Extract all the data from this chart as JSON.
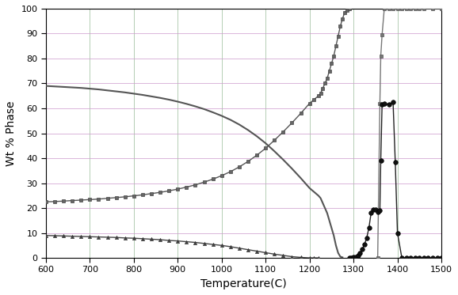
{
  "title": "",
  "xlabel": "Temperature(C)",
  "ylabel": "Wt % Phase",
  "xlim": [
    600,
    1500
  ],
  "ylim": [
    0,
    100
  ],
  "xticks": [
    600,
    700,
    800,
    900,
    1000,
    1100,
    1200,
    1300,
    1400,
    1500
  ],
  "yticks": [
    0,
    10,
    20,
    30,
    40,
    50,
    60,
    70,
    80,
    90,
    100
  ],
  "bg_color": "#ffffff",
  "grid_color": "#cc99cc",
  "grid_color2": "#99cc99",
  "series1_color": "#555555",
  "series2_color": "#777777",
  "series3_color": "#333333",
  "series4_color": "#000000",
  "gamma_prime_temps": [
    600,
    620,
    640,
    660,
    680,
    700,
    720,
    740,
    760,
    780,
    800,
    820,
    840,
    860,
    880,
    900,
    920,
    940,
    960,
    980,
    1000,
    1020,
    1040,
    1060,
    1080,
    1100,
    1120,
    1140,
    1160,
    1180,
    1200,
    1210,
    1220,
    1225,
    1230,
    1235,
    1240,
    1245,
    1250,
    1255,
    1260,
    1265,
    1270,
    1275,
    1280,
    1285,
    1290
  ],
  "gamma_prime_vals": [
    22.5,
    22.6,
    22.8,
    23.0,
    23.2,
    23.4,
    23.6,
    23.9,
    24.2,
    24.5,
    24.9,
    25.3,
    25.8,
    26.3,
    26.9,
    27.6,
    28.4,
    29.3,
    30.4,
    31.6,
    33.0,
    34.6,
    36.5,
    38.7,
    41.2,
    44.0,
    47.2,
    50.6,
    54.2,
    58.0,
    62.0,
    63.5,
    65.0,
    66.0,
    68.0,
    70.0,
    72.0,
    75.0,
    78.0,
    81.0,
    85.0,
    89.0,
    93.0,
    96.0,
    98.5,
    99.5,
    100.0
  ],
  "gamma_temps": [
    600,
    620,
    640,
    660,
    680,
    700,
    720,
    740,
    760,
    780,
    800,
    820,
    840,
    860,
    880,
    900,
    920,
    940,
    960,
    980,
    1000,
    1020,
    1040,
    1060,
    1080,
    1100,
    1120,
    1140,
    1160,
    1180,
    1200,
    1210,
    1220,
    1225,
    1230,
    1235,
    1240,
    1245,
    1250,
    1255,
    1260,
    1265,
    1270,
    1275,
    1280,
    1285,
    1290,
    1295,
    1300,
    1305,
    1310,
    1315,
    1320,
    1325,
    1330,
    1340,
    1350,
    1355,
    1360,
    1362,
    1365,
    1370,
    1380,
    1390,
    1400,
    1410,
    1420,
    1430,
    1440,
    1450,
    1460,
    1480,
    1500
  ],
  "gamma_vals": [
    69.0,
    68.8,
    68.6,
    68.4,
    68.2,
    67.9,
    67.6,
    67.2,
    66.8,
    66.4,
    65.9,
    65.4,
    64.8,
    64.2,
    63.5,
    62.7,
    61.8,
    60.8,
    59.7,
    58.4,
    57.0,
    55.4,
    53.5,
    51.3,
    48.8,
    46.0,
    42.8,
    39.4,
    35.8,
    32.0,
    28.0,
    26.5,
    25.0,
    24.0,
    22.0,
    20.0,
    18.0,
    15.0,
    12.0,
    9.0,
    5.0,
    2.0,
    0.5,
    0.2,
    0.0,
    0.0,
    0.0,
    0.0,
    0.0,
    0.0,
    0.0,
    0.0,
    0.0,
    0.0,
    0.0,
    0.0,
    0.0,
    0.0,
    62.0,
    81.0,
    89.5,
    100.0,
    100.0,
    100.0,
    100.0,
    100.0,
    100.0,
    100.0,
    100.0,
    100.0,
    100.0,
    100.0,
    100.0
  ],
  "mu_temps": [
    600,
    620,
    640,
    660,
    680,
    700,
    720,
    740,
    760,
    780,
    800,
    820,
    840,
    860,
    880,
    900,
    920,
    940,
    960,
    980,
    1000,
    1020,
    1040,
    1060,
    1080,
    1100,
    1120,
    1140,
    1160,
    1180,
    1200,
    1210,
    1220
  ],
  "mu_vals": [
    9.0,
    8.9,
    8.8,
    8.7,
    8.6,
    8.5,
    8.4,
    8.3,
    8.2,
    8.0,
    7.9,
    7.7,
    7.5,
    7.3,
    7.0,
    6.8,
    6.5,
    6.2,
    5.8,
    5.4,
    5.0,
    4.5,
    3.9,
    3.3,
    2.7,
    2.1,
    1.5,
    1.0,
    0.5,
    0.2,
    0.0,
    0.0,
    0.0
  ],
  "liquid_temps": [
    1290,
    1295,
    1300,
    1305,
    1310,
    1315,
    1320,
    1325,
    1330,
    1335,
    1340,
    1345,
    1350,
    1355,
    1360,
    1362,
    1365,
    1370,
    1380,
    1390,
    1395,
    1400,
    1410,
    1420,
    1430,
    1440,
    1450,
    1460,
    1470,
    1480,
    1490,
    1500
  ],
  "liquid_vals": [
    0.0,
    0.0,
    0.2,
    0.5,
    1.0,
    2.0,
    3.5,
    5.5,
    8.0,
    12.0,
    18.0,
    19.5,
    19.5,
    18.5,
    19.0,
    39.0,
    61.5,
    62.0,
    61.5,
    62.5,
    38.5,
    10.0,
    0.0,
    0.0,
    0.0,
    0.0,
    0.0,
    0.0,
    0.0,
    0.0,
    0.0,
    0.0
  ]
}
